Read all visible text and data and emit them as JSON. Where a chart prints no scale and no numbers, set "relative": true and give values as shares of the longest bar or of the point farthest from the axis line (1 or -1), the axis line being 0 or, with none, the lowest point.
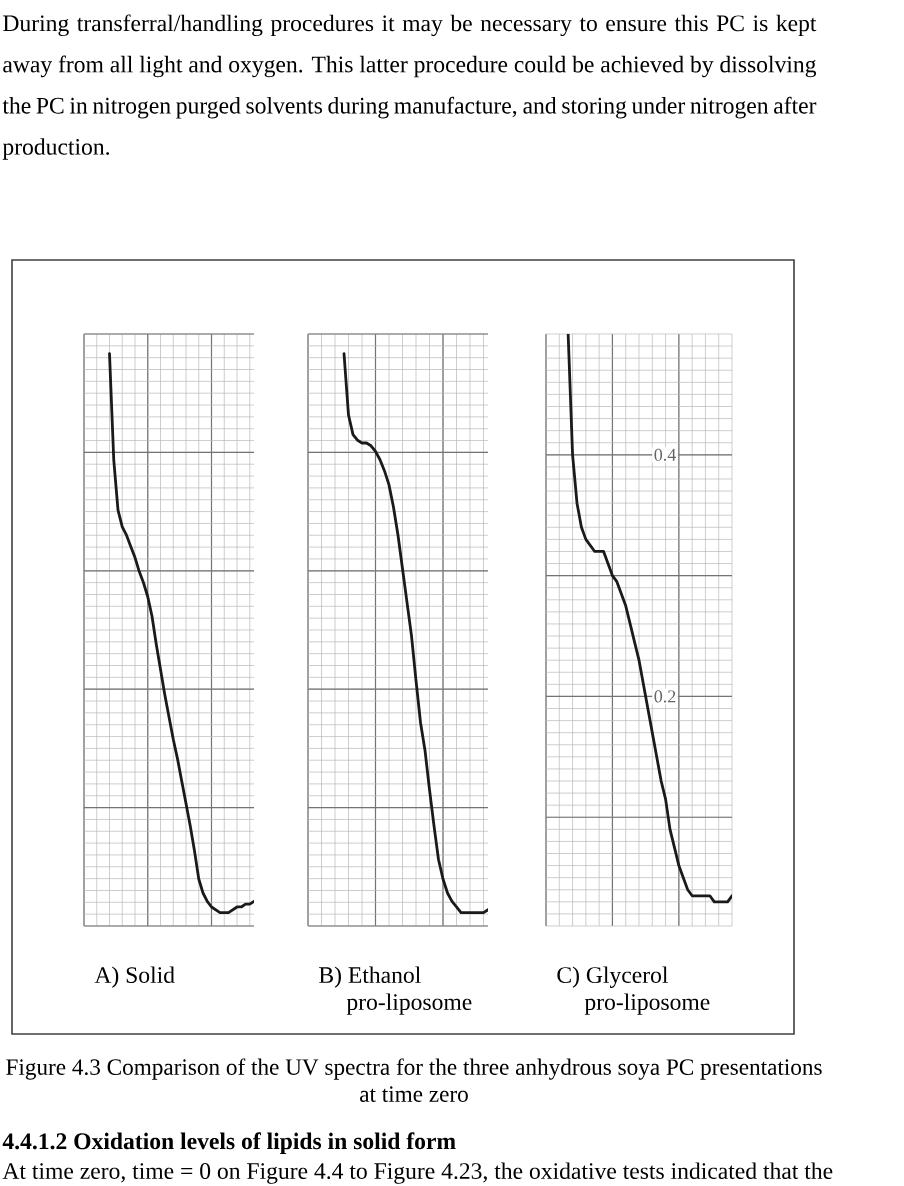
{
  "chart_data": [
    {
      "type": "other",
      "annotations": [
        "During transferral/handling procedures it may be necessary to ensure this PC is kept away from all light and oxygen. This latter procedure could be achieved by dissolving the PC in nitrogen purged solvents during manufacture, and storing under nitrogen after production."
      ]
    },
    {
      "type": "line",
      "title": "A) Solid",
      "categories": [
        null,
        null,
        null,
        null,
        null,
        null,
        null,
        null,
        null,
        null,
        null,
        null,
        null,
        null,
        null,
        null,
        null,
        null,
        null,
        null,
        null,
        null,
        null,
        null,
        null,
        null,
        null,
        null,
        null,
        null,
        null,
        null,
        null,
        null,
        null,
        null,
        null,
        null,
        null,
        null,
        null
      ],
      "values": [
        null,
        null,
        null,
        null,
        null,
        null,
        1,
        0.81,
        0.72,
        0.69,
        0.675,
        0.655,
        0.635,
        0.61,
        0.59,
        0.565,
        0.53,
        0.48,
        0.435,
        0.39,
        0.35,
        0.31,
        0.275,
        0.235,
        0.195,
        0.155,
        0.11,
        0.06,
        0.035,
        0.02,
        0.01,
        0.005,
        0,
        0,
        0,
        0.005,
        0.01,
        0.01,
        0.015,
        0.015,
        0.02
      ],
      "color": "#1a1a1a",
      "relative": true,
      "grid": true
    },
    {
      "type": "line",
      "title": "B) Ethanol pro-liposome",
      "categories": [
        null,
        null,
        null,
        null,
        null,
        null,
        null,
        null,
        null,
        null,
        null,
        null,
        null,
        null,
        null,
        null,
        null,
        null,
        null,
        null,
        null,
        null,
        null,
        null,
        null,
        null,
        null,
        null,
        null,
        null,
        null,
        null,
        null,
        null,
        null,
        null,
        null,
        null,
        null,
        null,
        null
      ],
      "values": [
        null,
        null,
        null,
        null,
        null,
        null,
        null,
        null,
        1,
        0.89,
        0.855,
        0.845,
        0.84,
        0.84,
        0.835,
        0.825,
        0.81,
        0.79,
        0.765,
        0.725,
        0.675,
        0.615,
        0.555,
        0.495,
        0.415,
        0.34,
        0.29,
        0.22,
        0.155,
        0.095,
        0.06,
        0.035,
        0.02,
        0.01,
        0,
        0,
        0,
        0,
        0,
        0,
        0.005
      ],
      "color": "#1a1a1a",
      "relative": true,
      "grid": true
    },
    {
      "type": "line",
      "title": "C) Glycerol pro-liposome",
      "categories": [
        null,
        null,
        null,
        null,
        null,
        null,
        null,
        null,
        null,
        null,
        null,
        null,
        null,
        null,
        null,
        null,
        null,
        null,
        null,
        null,
        null,
        null,
        null,
        null,
        null,
        null,
        null,
        null,
        null,
        null,
        null,
        null,
        null,
        null,
        null,
        null,
        null,
        null,
        null,
        null,
        null,
        null,
        null
      ],
      "values": [
        null,
        null,
        null,
        null,
        null,
        0.5,
        0.4,
        0.36,
        0.34,
        0.33,
        0.325,
        0.32,
        0.32,
        0.32,
        0.31,
        0.3,
        0.295,
        0.285,
        0.275,
        0.26,
        0.245,
        0.23,
        0.21,
        0.19,
        0.17,
        0.15,
        0.13,
        0.115,
        0.09,
        0.075,
        0.06,
        0.05,
        0.04,
        0.035,
        0.035,
        0.035,
        0.035,
        0.035,
        0.03,
        0.03,
        0.03,
        0.03,
        0.035
      ],
      "color": "#1a1a1a",
      "ylim": [
        0.01,
        0.5
      ],
      "yticks": [
        {
          "value": 0.1,
          "label": null
        },
        0.2,
        {
          "value": 0.3,
          "label": null
        },
        0.4
      ],
      "grid": true,
      "tick_labels": "y"
    },
    {
      "type": "other",
      "title": "4.4.1.2 Oxidation levels of lipids in solid form",
      "annotations": [
        "Figure 4.3 Comparison of the UV spectra for the three anhydrous soya PC presentations at time zero",
        "At time zero, time = 0 on Figure 4.4 to Figure 4.23, the oxidative tests indicated that the"
      ]
    }
  ]
}
